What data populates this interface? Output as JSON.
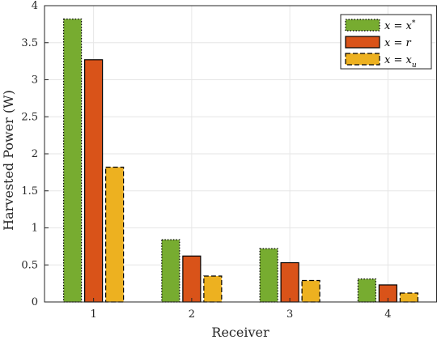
{
  "chart_data": {
    "type": "bar",
    "categories": [
      "1",
      "2",
      "3",
      "4"
    ],
    "series": [
      {
        "name": "x = x*",
        "values": [
          3.82,
          0.84,
          0.72,
          0.31
        ],
        "color": "#77ac30",
        "edge": "dotted"
      },
      {
        "name": "x = r",
        "values": [
          3.27,
          0.62,
          0.53,
          0.23
        ],
        "color": "#d95319",
        "edge": "solid"
      },
      {
        "name": "x = x_u",
        "values": [
          1.82,
          0.35,
          0.29,
          0.12
        ],
        "color": "#edb120",
        "edge": "dashed"
      }
    ],
    "xlabel": "Receiver",
    "ylabel": "Harvested Power (W)",
    "ylim": [
      0,
      4
    ],
    "yticks": [
      "0",
      "0.5",
      "1",
      "1.5",
      "2",
      "2.5",
      "3",
      "3.5",
      "4"
    ],
    "grid": true,
    "legend_position": "top-right"
  }
}
